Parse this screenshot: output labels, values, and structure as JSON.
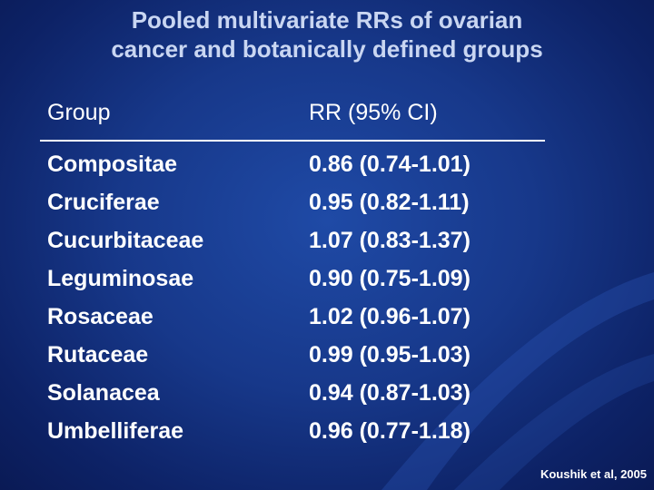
{
  "slide": {
    "title_line1": "Pooled multivariate RRs of ovarian",
    "title_line2": "cancer and botanically defined groups",
    "credit": "Koushik et al, 2005",
    "colors": {
      "background": "#17388a",
      "title": "#c9d6f2",
      "text": "#ffffff"
    }
  },
  "table": {
    "headers": [
      "Group",
      "RR (95% CI)"
    ],
    "rows": [
      [
        "Compositae",
        "0.86 (0.74-1.01)"
      ],
      [
        "Cruciferae",
        "0.95 (0.82-1.11)"
      ],
      [
        "Cucurbitaceae",
        "1.07 (0.83-1.37)"
      ],
      [
        "Leguminosae",
        "0.90 (0.75-1.09)"
      ],
      [
        "Rosaceae",
        "1.02 (0.96-1.07)"
      ],
      [
        "Rutaceae",
        "0.99 (0.95-1.03)"
      ],
      [
        "Solanacea",
        "0.94 (0.87-1.03)"
      ],
      [
        "Umbelliferae",
        "0.96 (0.77-1.18)"
      ]
    ]
  }
}
